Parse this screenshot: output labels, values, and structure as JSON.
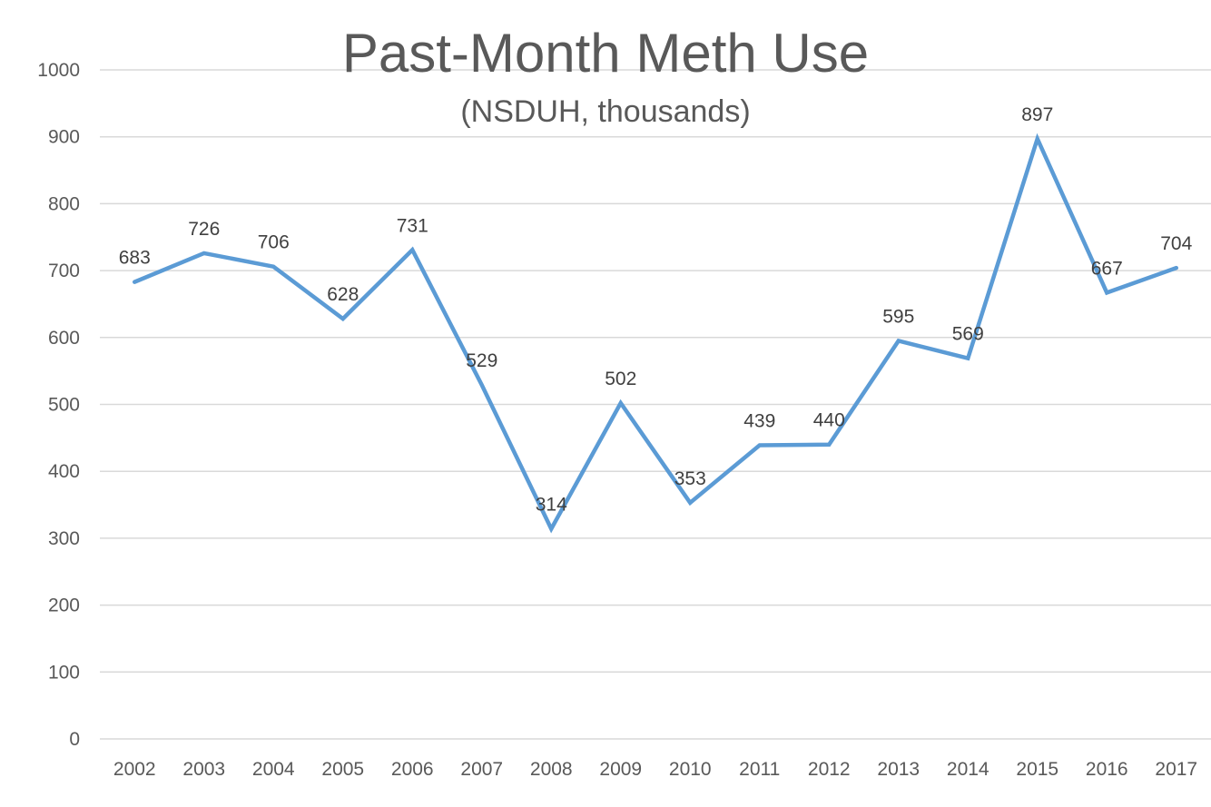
{
  "chart_data": {
    "type": "line",
    "title": "Past-Month Meth Use",
    "subtitle": "(NSDUH, thousands)",
    "xlabel": "",
    "ylabel": "",
    "categories": [
      "2002",
      "2003",
      "2004",
      "2005",
      "2006",
      "2007",
      "2008",
      "2009",
      "2010",
      "2011",
      "2012",
      "2013",
      "2014",
      "2015",
      "2016",
      "2017"
    ],
    "series": [
      {
        "name": "",
        "values": [
          683,
          726,
          706,
          628,
          731,
          529,
          314,
          502,
          353,
          439,
          440,
          595,
          569,
          897,
          667,
          704
        ]
      }
    ],
    "ylim": [
      0,
      1000
    ],
    "yticks": [
      "0",
      "100",
      "200",
      "300",
      "400",
      "500",
      "600",
      "700",
      "800",
      "900",
      "1000"
    ],
    "grid": true,
    "legend": "none",
    "data_labels": true,
    "colors": {
      "line": "#5b9bd5",
      "grid": "#d9d9d9",
      "text": "#595959"
    }
  }
}
